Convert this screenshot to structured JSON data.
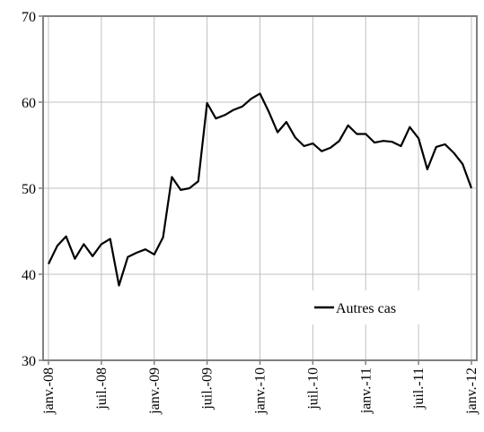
{
  "chart_data": {
    "type": "line",
    "title": "",
    "xlabel": "",
    "ylabel": "",
    "ylim": [
      30,
      70
    ],
    "yticks": [
      30,
      40,
      50,
      60,
      70
    ],
    "grid": true,
    "legend_position": "lower-right",
    "x_tick_labels": [
      "janv.-08",
      "juil.-08",
      "janv.-09",
      "juil.-09",
      "janv.-10",
      "juil.-10",
      "janv.-11",
      "juil.-11",
      "janv.-12"
    ],
    "x_tick_months": [
      0,
      6,
      12,
      18,
      24,
      30,
      36,
      42,
      48
    ],
    "series": [
      {
        "name": "Autres cas",
        "color": "#000000",
        "x_months": [
          0,
          1,
          2,
          3,
          4,
          5,
          6,
          7,
          8,
          9,
          10,
          11,
          12,
          13,
          14,
          15,
          16,
          17,
          18,
          19,
          20,
          21,
          22,
          23,
          24,
          25,
          26,
          27,
          28,
          29,
          30,
          31,
          32,
          33,
          34,
          35,
          36,
          37,
          38,
          39,
          40,
          41,
          42,
          43,
          44,
          45,
          46,
          47,
          48
        ],
        "values": [
          41.2,
          43.3,
          44.4,
          41.8,
          43.5,
          42.1,
          43.5,
          44.1,
          38.7,
          42.0,
          42.5,
          42.9,
          42.3,
          44.3,
          51.3,
          49.8,
          50.0,
          50.8,
          59.9,
          58.1,
          58.5,
          59.1,
          59.5,
          60.4,
          61.0,
          58.9,
          56.5,
          57.7,
          55.9,
          54.9,
          55.2,
          54.3,
          54.7,
          55.5,
          57.3,
          56.3,
          56.3,
          55.3,
          55.5,
          55.4,
          54.9,
          57.1,
          55.8,
          52.2,
          54.8,
          55.1,
          54.1,
          52.8,
          50.0
        ]
      }
    ]
  }
}
